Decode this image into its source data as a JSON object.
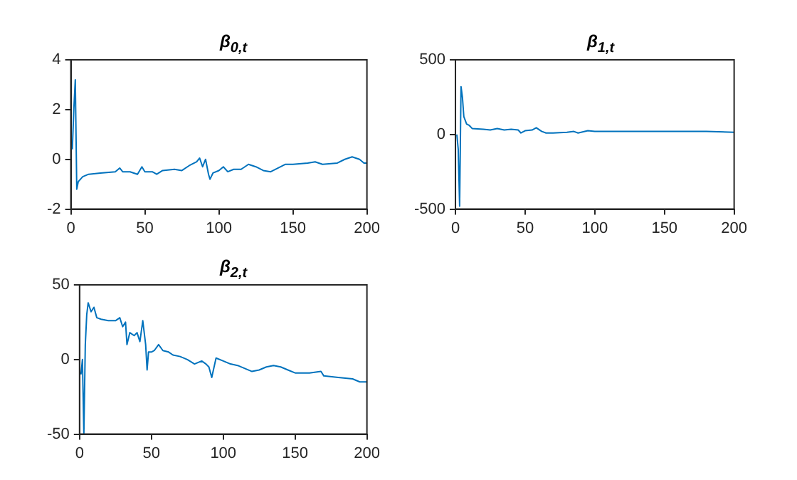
{
  "chart_data": [
    {
      "type": "line",
      "title": "β$_{0,t}$",
      "color": "#0072bd",
      "xlim": [
        0,
        200
      ],
      "ylim": [
        -2,
        4
      ],
      "xticks": [
        0,
        50,
        100,
        150,
        200
      ],
      "yticks": [
        -2,
        0,
        2,
        4
      ],
      "grid": false,
      "x": [
        1,
        2,
        3,
        4,
        5,
        8,
        12,
        20,
        30,
        33,
        35,
        40,
        45,
        48,
        50,
        55,
        58,
        62,
        70,
        75,
        80,
        85,
        87,
        89,
        91,
        93,
        94,
        96,
        100,
        103,
        106,
        110,
        115,
        120,
        125,
        130,
        135,
        140,
        145,
        150,
        160,
        165,
        170,
        180,
        185,
        190,
        195,
        198,
        200
      ],
      "values": [
        0.4,
        2.0,
        3.2,
        -1.2,
        -0.9,
        -0.7,
        -0.6,
        -0.55,
        -0.5,
        -0.35,
        -0.5,
        -0.5,
        -0.6,
        -0.3,
        -0.5,
        -0.5,
        -0.6,
        -0.45,
        -0.4,
        -0.45,
        -0.25,
        -0.1,
        0.05,
        -0.3,
        0.0,
        -0.6,
        -0.8,
        -0.55,
        -0.45,
        -0.3,
        -0.5,
        -0.4,
        -0.4,
        -0.2,
        -0.3,
        -0.45,
        -0.5,
        -0.35,
        -0.2,
        -0.2,
        -0.15,
        -0.1,
        -0.2,
        -0.15,
        0.0,
        0.1,
        0.0,
        -0.15,
        -0.15
      ]
    },
    {
      "type": "line",
      "title": "β$_{1,t}$",
      "color": "#0072bd",
      "xlim": [
        0,
        200
      ],
      "ylim": [
        -500,
        500
      ],
      "xticks": [
        0,
        50,
        100,
        150,
        200
      ],
      "yticks": [
        -500,
        0,
        500
      ],
      "grid": false,
      "x": [
        1,
        2,
        3,
        4,
        5,
        6,
        8,
        10,
        12,
        20,
        25,
        30,
        35,
        40,
        45,
        47,
        50,
        55,
        58,
        62,
        65,
        70,
        80,
        85,
        88,
        95,
        100,
        120,
        150,
        180,
        200
      ],
      "values": [
        0,
        -100,
        -480,
        320,
        250,
        120,
        70,
        60,
        40,
        35,
        30,
        40,
        30,
        35,
        30,
        10,
        25,
        30,
        45,
        20,
        10,
        10,
        15,
        20,
        10,
        25,
        20,
        20,
        20,
        20,
        15
      ]
    },
    {
      "type": "line",
      "title": "β$_{2,t}$",
      "color": "#0072bd",
      "xlim": [
        0,
        200
      ],
      "ylim": [
        -50,
        50
      ],
      "xticks": [
        0,
        50,
        100,
        150,
        200
      ],
      "yticks": [
        -50,
        0,
        50
      ],
      "grid": false,
      "x": [
        1,
        2,
        3,
        4,
        5,
        6,
        8,
        10,
        12,
        15,
        20,
        25,
        28,
        30,
        32,
        33,
        35,
        38,
        40,
        42,
        44,
        46,
        47,
        48,
        50,
        52,
        55,
        58,
        62,
        65,
        70,
        75,
        80,
        85,
        88,
        90,
        92,
        95,
        100,
        105,
        110,
        115,
        120,
        125,
        130,
        135,
        140,
        145,
        150,
        160,
        168,
        170,
        180,
        190,
        195,
        200
      ],
      "values": [
        -10,
        0,
        -50,
        10,
        30,
        38,
        32,
        35,
        28,
        27,
        26,
        26,
        28,
        22,
        25,
        10,
        18,
        16,
        18,
        12,
        26,
        10,
        -7,
        5,
        5,
        6,
        10,
        6,
        5,
        3,
        2,
        0,
        -3,
        -1,
        -3,
        -5,
        -12,
        1,
        -1,
        -3,
        -4,
        -6,
        -8,
        -7,
        -5,
        -4,
        -5,
        -7,
        -9,
        -9,
        -8,
        -11,
        -12,
        -13,
        -15,
        -15
      ]
    }
  ]
}
